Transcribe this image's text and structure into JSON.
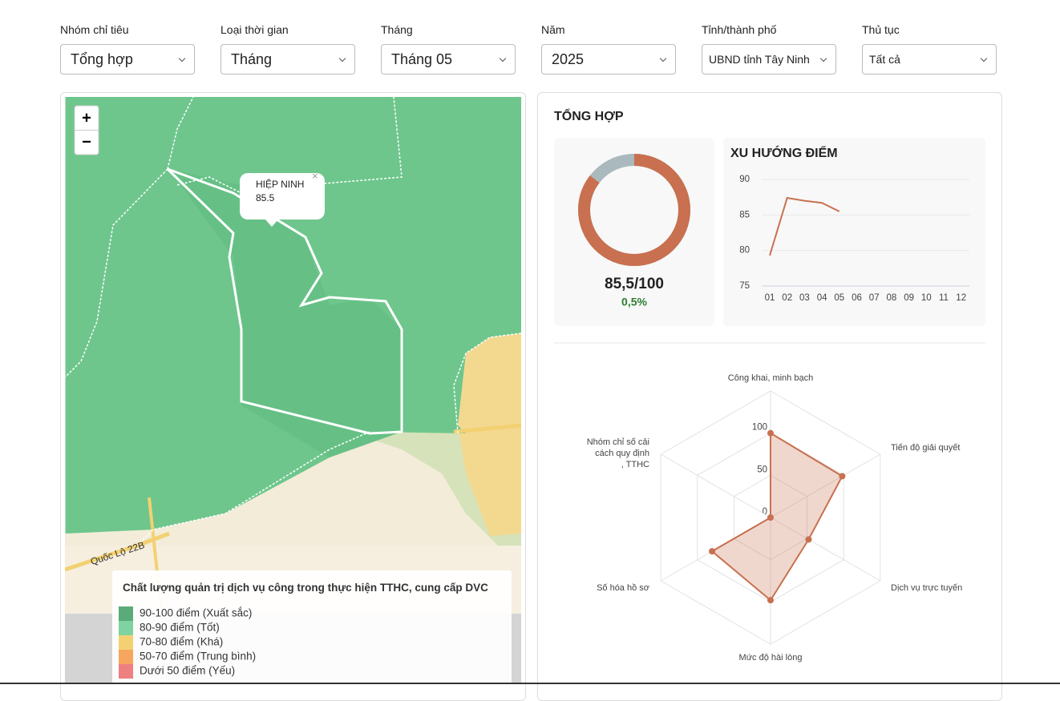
{
  "filters": [
    {
      "label": "Nhóm chỉ tiêu",
      "value": "Tổng hợp"
    },
    {
      "label": "Loại thời gian",
      "value": "Tháng"
    },
    {
      "label": "Tháng",
      "value": "Tháng 05"
    },
    {
      "label": "Năm",
      "value": "2025"
    },
    {
      "label": "Tỉnh/thành phố",
      "value": "UBND tỉnh Tây Ninh"
    },
    {
      "label": "Thủ tục",
      "value": "Tất cả"
    }
  ],
  "map": {
    "zoom_in": "+",
    "zoom_out": "−",
    "popup": {
      "name": "HIỆP NINH",
      "value": "85.5"
    },
    "road": "Quốc Lộ 22B",
    "legend": {
      "title": "Chất lượng quản trị dịch vụ công trong thực hiện TTHC, cung cấp DVC",
      "items": [
        {
          "label": "90-100 điểm (Xuất sắc)",
          "color": "#5aab78"
        },
        {
          "label": "80-90 điểm (Tốt)",
          "color": "#7fd3a1"
        },
        {
          "label": "70-80 điểm (Khá)",
          "color": "#f3d172"
        },
        {
          "label": "50-70 điểm (Trung bình)",
          "color": "#f6a65f"
        },
        {
          "label": "Dưới 50 điểm (Yếu)",
          "color": "#ef8080"
        }
      ]
    }
  },
  "summary": {
    "title": "TỔNG HỢP",
    "score": {
      "value": 85.5,
      "max": 100,
      "label": "85,5/100",
      "color": "#c8704f",
      "rest_color": "#aab9be"
    },
    "change": {
      "value": 0.5,
      "label": "0,5%"
    },
    "trend": {
      "type": "line",
      "title": "XU HƯỚNG ĐIỂM",
      "color": "#c8704f",
      "categories": [
        "01",
        "02",
        "03",
        "04",
        "05",
        "06",
        "07",
        "08",
        "09",
        "10",
        "11",
        "12"
      ],
      "values": [
        79.3,
        87.4,
        87.0,
        86.7,
        85.5,
        null,
        null,
        null,
        null,
        null,
        null,
        null
      ],
      "ylim": [
        75,
        90
      ],
      "yticks": [
        75,
        80,
        85,
        90
      ],
      "grid": true
    },
    "radar": {
      "type": "radar",
      "color": "#c8704f",
      "axes": [
        "Công khai, minh bạch",
        "Tiến độ giải quyết",
        "Dịch vụ trực tuyến",
        "Mức độ hài lòng",
        "Số hóa hồ sơ",
        "Nhóm chỉ số cải cách quy định, TTHC"
      ],
      "values": [
        100,
        98,
        52,
        98,
        80,
        0
      ],
      "rlim": [
        0,
        150
      ],
      "rticks": [
        0,
        50,
        100
      ]
    }
  }
}
